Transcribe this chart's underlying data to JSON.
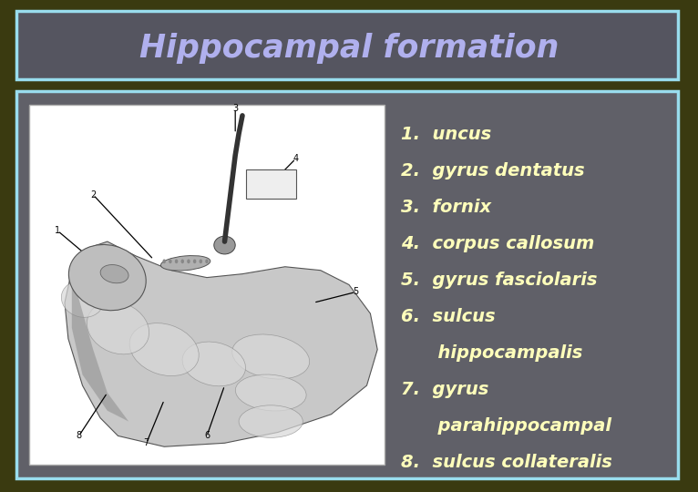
{
  "title": "Hippocampal formation",
  "title_color": "#b0b0ee",
  "title_bg_color": "#555560",
  "title_border_color": "#99ddee",
  "background_color": "#3a3a10",
  "panel_bg_color": "#606068",
  "panel_border_color": "#99ddee",
  "text_color": "#ffffbb",
  "items": [
    {
      "text": "1.  uncus",
      "indent": 0
    },
    {
      "text": "2.  gyrus dentatus",
      "indent": 0
    },
    {
      "text": "3.  fornix",
      "indent": 0
    },
    {
      "text": "4.  corpus callosum",
      "indent": 0
    },
    {
      "text": "5.  gyrus fasciolaris",
      "indent": 0
    },
    {
      "text": "6.  sulcus",
      "indent": 0
    },
    {
      "text": "      hippocampalis",
      "indent": 1
    },
    {
      "text": "7.  gyrus",
      "indent": 0
    },
    {
      "text": "      parahippocampal",
      "indent": 1
    },
    {
      "text": "8.  sulcus collateralis",
      "indent": 0
    }
  ],
  "image_panel_bg": "#ffffff",
  "fig_width": 7.66,
  "fig_height": 5.4,
  "dpi": 100
}
